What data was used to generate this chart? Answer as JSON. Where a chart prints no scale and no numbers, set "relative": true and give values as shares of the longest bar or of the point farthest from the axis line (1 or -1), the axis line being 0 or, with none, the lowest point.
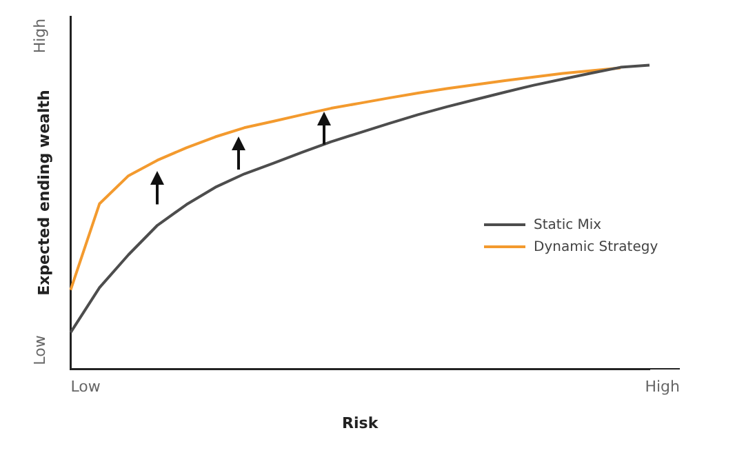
{
  "chart_data": {
    "type": "line",
    "xlabel": "Risk",
    "ylabel": "Expected ending wealth",
    "relative": true,
    "categories": [
      null,
      null,
      null,
      null,
      null,
      null,
      null,
      null,
      null,
      null,
      null,
      null,
      null,
      null,
      null,
      null,
      null,
      null,
      null,
      null,
      null
    ],
    "annotations": [
      "High",
      "Low",
      "Low",
      "High"
    ],
    "series": [
      {
        "name": "Static Mix",
        "color": "#4d4d4d",
        "values": [
          0.12,
          0.268,
          0.376,
          0.473,
          0.541,
          0.598,
          0.642,
          0.677,
          0.713,
          0.748,
          0.778,
          0.808,
          0.837,
          0.863,
          0.887,
          0.911,
          0.934,
          0.954,
          0.974,
          0.993,
          1
        ]
      },
      {
        "name": "Dynamic Strategy",
        "color": "#f39a2e",
        "values": [
          0.26,
          0.544,
          0.636,
          0.687,
          0.728,
          0.764,
          0.794,
          0.815,
          0.837,
          0.858,
          0.875,
          0.892,
          0.908,
          0.923,
          0.936,
          0.949,
          0.961,
          0.973,
          0.982,
          0.991,
          null
        ]
      }
    ],
    "marker": "none",
    "line_style": "solid",
    "legend": "bottom right"
  }
}
